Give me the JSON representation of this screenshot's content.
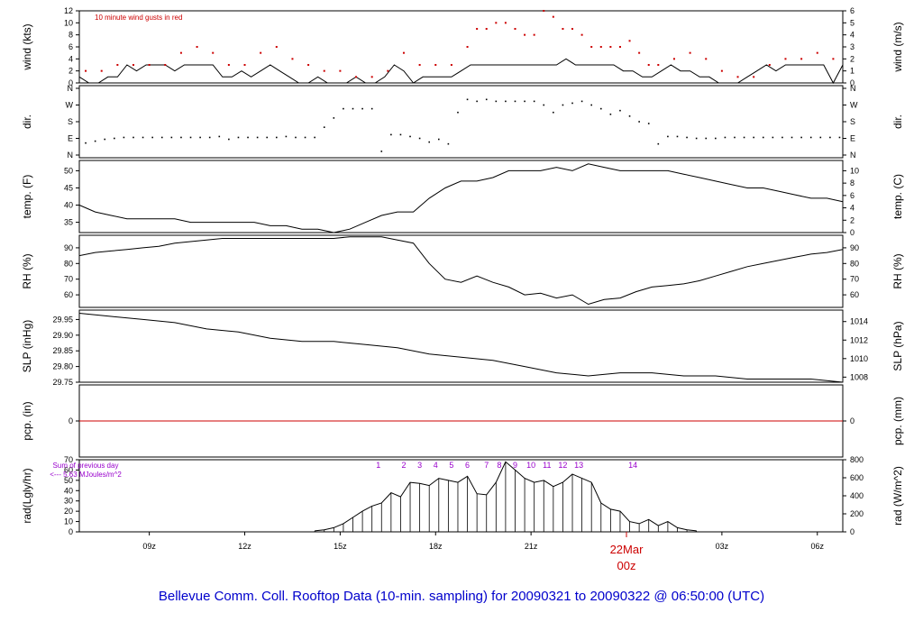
{
  "chart_data": {
    "type": "line",
    "title": "Bellevue Comm. Coll. Rooftop Data (10-min. sampling) for 20090321  to  20090322 @ 06:50:00  (UTC)",
    "x_ticks": [
      "09z",
      "12z",
      "15z",
      "18z",
      "21z",
      "03z",
      "06z"
    ],
    "date_marker": {
      "date": "22Mar",
      "hour": "00z"
    },
    "x_range_hours_utc": [
      6.8,
      30.8
    ],
    "panels": [
      {
        "id": "wind",
        "ylabel_left": "wind (kts)",
        "ylabel_right": "wind (m/s)",
        "ylim": [
          0,
          12
        ],
        "yticks_left": [
          "0",
          "2",
          "4",
          "6",
          "8",
          "10",
          "12"
        ],
        "yticks_right": [
          "0",
          "1",
          "2",
          "3",
          "4",
          "5",
          "6"
        ],
        "annotation": "10  minute wind gusts in red",
        "series": [
          {
            "name": "wind speed",
            "color": "#000000",
            "x": [
              6.8,
              7.1,
              7.4,
              7.7,
              8.0,
              8.3,
              8.6,
              8.9,
              9.2,
              9.5,
              9.8,
              10.1,
              10.4,
              10.7,
              11.0,
              11.3,
              11.6,
              11.9,
              12.2,
              12.5,
              12.8,
              13.1,
              13.4,
              13.7,
              14.0,
              14.3,
              14.6,
              14.9,
              15.2,
              15.5,
              15.8,
              16.1,
              16.4,
              16.7,
              17.0,
              17.3,
              17.6,
              17.9,
              18.2,
              18.5,
              18.8,
              19.1,
              19.4,
              19.7,
              20.0,
              20.3,
              20.6,
              20.9,
              21.2,
              21.5,
              21.8,
              22.1,
              22.4,
              22.7,
              23.0,
              23.3,
              23.6,
              23.9,
              24.2,
              24.5,
              24.8,
              25.1,
              25.4,
              25.7,
              26.0,
              26.3,
              26.6,
              26.9,
              27.2,
              27.5,
              27.8,
              28.1,
              28.4,
              28.7,
              29.0,
              29.3,
              29.6,
              29.9,
              30.2,
              30.5,
              30.8
            ],
            "y": [
              1,
              0,
              0,
              1,
              1,
              3,
              2,
              3,
              3,
              3,
              2,
              3,
              3,
              3,
              3,
              1,
              1,
              2,
              1,
              2,
              3,
              2,
              1,
              0,
              0,
              1,
              0,
              0,
              0,
              1,
              0,
              0,
              1,
              3,
              2,
              0,
              1,
              1,
              1,
              1,
              2,
              3,
              3,
              3,
              3,
              3,
              3,
              3,
              3,
              3,
              3,
              4,
              3,
              3,
              3,
              3,
              3,
              2,
              2,
              1,
              1,
              2,
              3,
              2,
              2,
              1,
              1,
              0,
              0,
              0,
              1,
              2,
              3,
              2,
              3,
              3,
              3,
              3,
              3,
              0,
              3
            ]
          },
          {
            "name": "gusts",
            "color": "#cc0000",
            "x": [
              7.0,
              7.5,
              8.0,
              8.5,
              9.0,
              9.5,
              10.0,
              10.5,
              11.0,
              11.5,
              12.0,
              12.5,
              13.0,
              13.5,
              14.0,
              14.5,
              15.0,
              15.5,
              16.0,
              16.5,
              17.0,
              17.5,
              18.0,
              18.5,
              19.0,
              19.3,
              19.6,
              19.9,
              20.2,
              20.5,
              20.8,
              21.1,
              21.4,
              21.7,
              22.0,
              22.3,
              22.6,
              22.9,
              23.2,
              23.5,
              23.8,
              24.1,
              24.4,
              24.7,
              25.0,
              25.5,
              26.0,
              26.5,
              27.0,
              27.5,
              28.0,
              28.5,
              29.0,
              29.5,
              30.0,
              30.5
            ],
            "y": [
              2,
              2,
              3,
              3,
              3,
              3,
              5,
              6,
              5,
              3,
              3,
              5,
              6,
              4,
              3,
              2,
              2,
              1,
              1,
              2,
              5,
              3,
              3,
              3,
              6,
              9,
              9,
              10,
              10,
              9,
              8,
              8,
              12,
              11,
              9,
              9,
              8,
              6,
              6,
              6,
              6,
              7,
              5,
              3,
              3,
              4,
              5,
              4,
              2,
              1,
              1,
              3,
              4,
              4,
              5,
              4
            ]
          }
        ]
      },
      {
        "id": "dir",
        "ylabel_left": "dir.",
        "ylabel_right": "dir.",
        "yticks_left": [
          "N",
          "E",
          "S",
          "W",
          "N"
        ],
        "yticks_right": [
          "N",
          "E",
          "S",
          "W",
          "N"
        ],
        "ylim": [
          0,
          360
        ],
        "series": [
          {
            "name": "wind direction",
            "color": "#000000",
            "x": [
              7.0,
              7.3,
              7.6,
              7.9,
              8.2,
              8.5,
              8.8,
              9.1,
              9.4,
              9.7,
              10.0,
              10.3,
              10.6,
              10.9,
              11.2,
              11.5,
              11.8,
              12.1,
              12.4,
              12.7,
              13.0,
              13.3,
              13.6,
              13.9,
              14.2,
              14.5,
              14.8,
              15.1,
              15.4,
              15.7,
              16.0,
              16.3,
              16.6,
              16.9,
              17.2,
              17.5,
              17.8,
              18.1,
              18.4,
              18.7,
              19.0,
              19.3,
              19.6,
              19.9,
              20.2,
              20.5,
              20.8,
              21.1,
              21.4,
              21.7,
              22.0,
              22.3,
              22.6,
              22.9,
              23.2,
              23.5,
              23.8,
              24.1,
              24.4,
              24.7,
              25.0,
              25.3,
              25.6,
              25.9,
              26.2,
              26.5,
              26.8,
              27.1,
              27.4,
              27.7,
              28.0,
              28.3,
              28.6,
              28.9,
              29.2,
              29.5,
              29.8,
              30.1,
              30.4,
              30.7
            ],
            "y": [
              65,
              75,
              85,
              90,
              95,
              95,
              95,
              95,
              95,
              95,
              95,
              95,
              95,
              95,
              100,
              85,
              95,
              95,
              95,
              95,
              95,
              100,
              95,
              95,
              95,
              150,
              200,
              250,
              250,
              250,
              250,
              20,
              110,
              110,
              100,
              90,
              70,
              85,
              60,
              230,
              300,
              290,
              300,
              290,
              290,
              290,
              290,
              290,
              270,
              230,
              270,
              280,
              290,
              270,
              250,
              220,
              240,
              210,
              180,
              170,
              60,
              100,
              100,
              95,
              90,
              90,
              90,
              95,
              95,
              95,
              95,
              95,
              95,
              95,
              95,
              95,
              95,
              95,
              95,
              95
            ]
          }
        ]
      },
      {
        "id": "temp",
        "ylabel_left": "temp. (F)",
        "ylabel_right": "temp. (C)",
        "ylim": [
          32,
          53
        ],
        "yticks_left": [
          "35",
          "40",
          "45",
          "50"
        ],
        "yticks_right": [
          "0",
          "2",
          "4",
          "6",
          "8",
          "10"
        ],
        "series": [
          {
            "name": "temperature",
            "color": "#000000",
            "x": [
              6.8,
              7.3,
              7.8,
              8.3,
              8.8,
              9.3,
              9.8,
              10.3,
              10.8,
              11.3,
              11.8,
              12.3,
              12.8,
              13.3,
              13.8,
              14.3,
              14.8,
              15.3,
              15.8,
              16.3,
              16.8,
              17.3,
              17.8,
              18.3,
              18.8,
              19.3,
              19.8,
              20.3,
              20.8,
              21.3,
              21.8,
              22.3,
              22.8,
              23.3,
              23.8,
              24.3,
              24.8,
              25.3,
              25.8,
              26.3,
              26.8,
              27.3,
              27.8,
              28.3,
              28.8,
              29.3,
              29.8,
              30.3,
              30.8
            ],
            "y": [
              40,
              38,
              37,
              36,
              36,
              36,
              36,
              35,
              35,
              35,
              35,
              35,
              34,
              34,
              33,
              33,
              32,
              33,
              35,
              37,
              38,
              38,
              42,
              45,
              47,
              47,
              48,
              50,
              50,
              50,
              51,
              50,
              52,
              51,
              50,
              50,
              50,
              50,
              49,
              48,
              47,
              46,
              45,
              45,
              44,
              43,
              42,
              42,
              41
            ]
          }
        ]
      },
      {
        "id": "rh",
        "ylabel_left": "RH (%)",
        "ylabel_right": "RH (%)",
        "ylim": [
          52,
          98
        ],
        "yticks_left": [
          "60",
          "70",
          "80",
          "90"
        ],
        "yticks_right": [
          "60",
          "70",
          "80",
          "90"
        ],
        "series": [
          {
            "name": "relative humidity",
            "color": "#000000",
            "x": [
              6.8,
              7.3,
              7.8,
              8.3,
              8.8,
              9.3,
              9.8,
              10.3,
              10.8,
              11.3,
              11.8,
              12.3,
              12.8,
              13.3,
              13.8,
              14.3,
              14.8,
              15.3,
              15.8,
              16.3,
              16.8,
              17.3,
              17.8,
              18.3,
              18.8,
              19.3,
              19.8,
              20.3,
              20.8,
              21.3,
              21.8,
              22.3,
              22.8,
              23.3,
              23.8,
              24.3,
              24.8,
              25.3,
              25.8,
              26.3,
              26.8,
              27.3,
              27.8,
              28.3,
              28.8,
              29.3,
              29.8,
              30.3,
              30.8
            ],
            "y": [
              85,
              87,
              88,
              89,
              90,
              91,
              93,
              94,
              95,
              96,
              96,
              96,
              96,
              96,
              96,
              96,
              96,
              97,
              97,
              97,
              95,
              93,
              80,
              70,
              68,
              72,
              68,
              65,
              60,
              61,
              58,
              60,
              54,
              57,
              58,
              62,
              65,
              66,
              67,
              69,
              72,
              75,
              78,
              80,
              82,
              84,
              86,
              87,
              89
            ]
          }
        ]
      },
      {
        "id": "slp",
        "ylabel_left": "SLP (inHg)",
        "ylabel_right": "SLP (hPa)",
        "ylim": [
          29.75,
          29.98
        ],
        "yticks_left": [
          "29.75",
          "29.80",
          "29.85",
          "29.90",
          "29.95"
        ],
        "yticks_right": [
          "1008",
          "1010",
          "1012",
          "1014"
        ],
        "series": [
          {
            "name": "sea level pressure",
            "color": "#000000",
            "x": [
              6.8,
              7.8,
              8.8,
              9.8,
              10.8,
              11.8,
              12.8,
              13.8,
              14.8,
              15.8,
              16.8,
              17.8,
              18.8,
              19.8,
              20.8,
              21.8,
              22.8,
              23.8,
              24.8,
              25.8,
              26.8,
              27.8,
              28.8,
              29.8,
              30.8
            ],
            "y": [
              29.97,
              29.96,
              29.95,
              29.94,
              29.92,
              29.91,
              29.89,
              29.88,
              29.88,
              29.87,
              29.86,
              29.84,
              29.83,
              29.82,
              29.8,
              29.78,
              29.77,
              29.78,
              29.78,
              29.77,
              29.77,
              29.76,
              29.76,
              29.76,
              29.75
            ]
          }
        ]
      },
      {
        "id": "pcp",
        "ylabel_left": "pcp. (in)",
        "ylabel_right": "pcp. (mm)",
        "ylim": [
          -1,
          1
        ],
        "yticks_left": [
          "0"
        ],
        "yticks_right": [
          "0"
        ],
        "series": [
          {
            "name": "precipitation",
            "color": "#cc0000",
            "x": [
              6.8,
              30.8
            ],
            "y": [
              0,
              0
            ]
          }
        ]
      },
      {
        "id": "rad",
        "ylabel_left": "rad(Lgly/hr)",
        "ylabel_right": "rad (W/m^2)",
        "ylim": [
          0,
          70
        ],
        "yticks_left": [
          "0",
          "10",
          "20",
          "30",
          "40",
          "50",
          "60",
          "70"
        ],
        "yticks_right": [
          "0",
          "200",
          "400",
          "600",
          "800"
        ],
        "annotation_lines": [
          "Sum of previous day",
          "<--- 5.63 MJoules/m^2"
        ],
        "hour_labels": [
          "1",
          "2",
          "3",
          "4",
          "5",
          "6",
          "7",
          "8",
          "9",
          "10",
          "11",
          "12",
          "13",
          "14"
        ],
        "series": [
          {
            "name": "solar radiation",
            "color": "#000000",
            "x": [
              14.2,
              14.5,
              14.8,
              15.1,
              15.4,
              15.7,
              16.0,
              16.3,
              16.6,
              16.9,
              17.2,
              17.5,
              17.8,
              18.1,
              18.4,
              18.7,
              19.0,
              19.3,
              19.6,
              19.9,
              20.2,
              20.5,
              20.8,
              21.1,
              21.4,
              21.7,
              22.0,
              22.3,
              22.6,
              22.9,
              23.2,
              23.5,
              23.8,
              24.1,
              24.4,
              24.7,
              25.0,
              25.3,
              25.6,
              25.9,
              26.2
            ],
            "y": [
              1,
              2,
              4,
              8,
              14,
              20,
              25,
              28,
              38,
              34,
              48,
              47,
              45,
              52,
              50,
              48,
              54,
              37,
              36,
              48,
              68,
              60,
              52,
              48,
              50,
              44,
              48,
              56,
              52,
              48,
              28,
              22,
              20,
              10,
              8,
              12,
              6,
              10,
              4,
              2,
              1
            ]
          }
        ]
      }
    ]
  }
}
